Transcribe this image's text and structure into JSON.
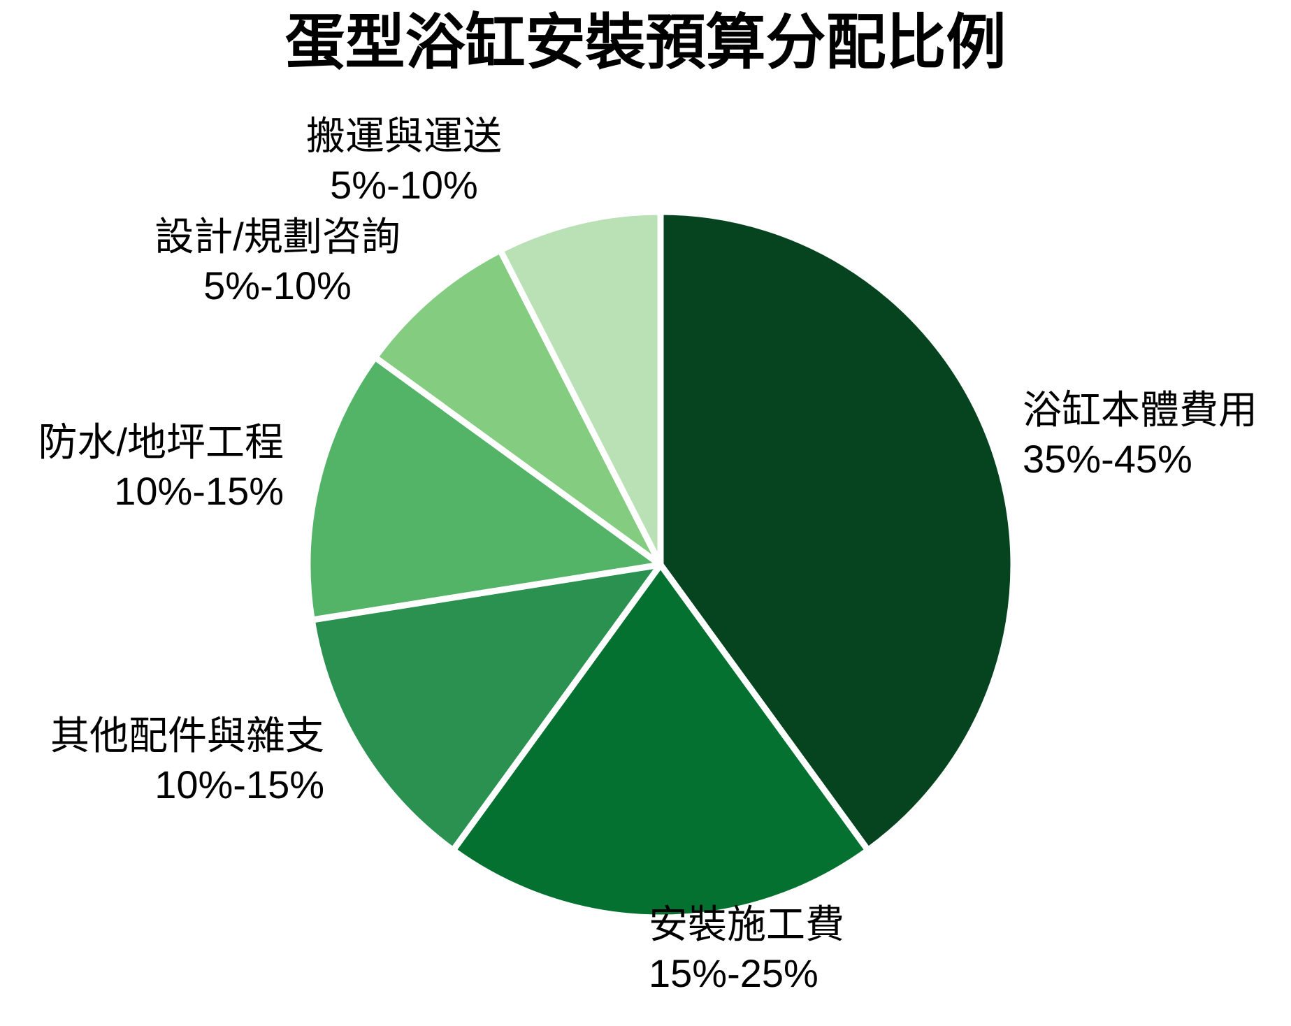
{
  "title": "蛋型浴缸安裝預算分配比例",
  "chart_data": {
    "type": "pie",
    "title": "蛋型浴缸安裝預算分配比例",
    "start_angle_deg": 0,
    "direction": "clockwise",
    "labels_position": "outside",
    "legend": "none",
    "background_color": "#ffffff",
    "divider_color": "#ffffff",
    "slices": [
      {
        "label": "浴缸本體費用",
        "range": "35%-45%",
        "value": 40,
        "color": "#05441f"
      },
      {
        "label": "安裝施工費",
        "range": "15%-25%",
        "value": 20,
        "color": "#047130"
      },
      {
        "label": "其他配件與雜支",
        "range": "10%-15%",
        "value": 12.5,
        "color": "#2a9150"
      },
      {
        "label": "防水/地坪工程",
        "range": "10%-15%",
        "value": 12.5,
        "color": "#53b367"
      },
      {
        "label": "設計/規劃咨詢",
        "range": "5%-10%",
        "value": 7.5,
        "color": "#84cd80"
      },
      {
        "label": "搬運與運送",
        "range": "5%-10%",
        "value": 7.5,
        "color": "#b9e1b5"
      }
    ]
  }
}
